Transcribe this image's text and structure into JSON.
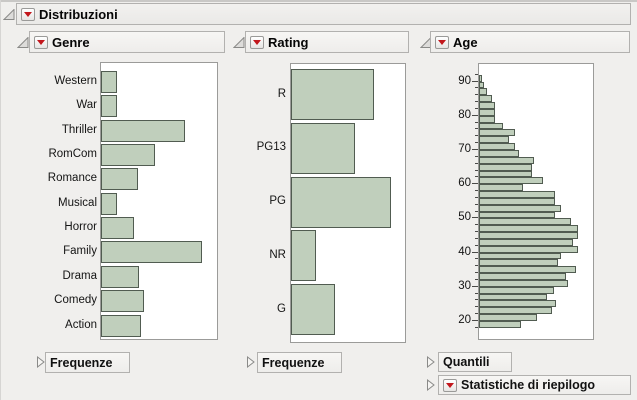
{
  "app": {
    "title": "Distribuzioni"
  },
  "panels": [
    {
      "title": "Genre",
      "footer": [
        {
          "label": "Frequenze",
          "has_menu": false
        }
      ]
    },
    {
      "title": "Rating",
      "footer": [
        {
          "label": "Frequenze",
          "has_menu": false
        }
      ]
    },
    {
      "title": "Age",
      "footer": [
        {
          "label": "Quantili",
          "has_menu": false
        },
        {
          "label": "Statistiche di riepilogo",
          "has_menu": true
        }
      ]
    }
  ],
  "icons": {
    "disclosure_open": "open-corner-triangle",
    "disclosure_closed": "right-pointing-outline-triangle",
    "menu_button": "red-dropdown-triangle"
  },
  "colors": {
    "bar_fill": "#c0cfbc",
    "bar_stroke": "#515c51",
    "menu_red": "#c2171c",
    "background": "#f0efed",
    "plot_background": "#ffffff"
  },
  "chart_data": [
    {
      "type": "bar",
      "orientation": "horizontal",
      "title": "Genre",
      "categories": [
        "Western",
        "War",
        "Thriller",
        "RomCom",
        "Romance",
        "Musical",
        "Horror",
        "Family",
        "Drama",
        "Comedy",
        "Action"
      ],
      "values": [
        16,
        16,
        84,
        54,
        37,
        16,
        33,
        101,
        38,
        43,
        40
      ],
      "value_axis_label": "",
      "note_units": "relative frequency, axis unlabeled in source",
      "grid": false,
      "legend": false
    },
    {
      "type": "bar",
      "orientation": "horizontal",
      "title": "Rating",
      "categories": [
        "R",
        "PG13",
        "PG",
        "NR",
        "G"
      ],
      "values": [
        83,
        64,
        100,
        25,
        44
      ],
      "value_axis_label": "",
      "note_units": "relative frequency, axis unlabeled in source",
      "grid": false,
      "legend": false
    },
    {
      "type": "histogram",
      "orientation": "horizontal",
      "title": "Age",
      "bin_start": 18,
      "bin_width": 2,
      "values": [
        42,
        58,
        73,
        77,
        68,
        75,
        89,
        87,
        97,
        79,
        82,
        99,
        94,
        99,
        99,
        92,
        76,
        82,
        76,
        76,
        44,
        64,
        53,
        53,
        55,
        40,
        36,
        30,
        36,
        24,
        16,
        16,
        16,
        13,
        8,
        5,
        3
      ],
      "y_ticks": [
        20,
        30,
        40,
        50,
        60,
        70,
        80,
        90
      ],
      "y_range": [
        16,
        95
      ],
      "value_axis_label": "",
      "note_units": "relative frequency, axis unlabeled in source",
      "grid": false,
      "legend": false
    }
  ]
}
